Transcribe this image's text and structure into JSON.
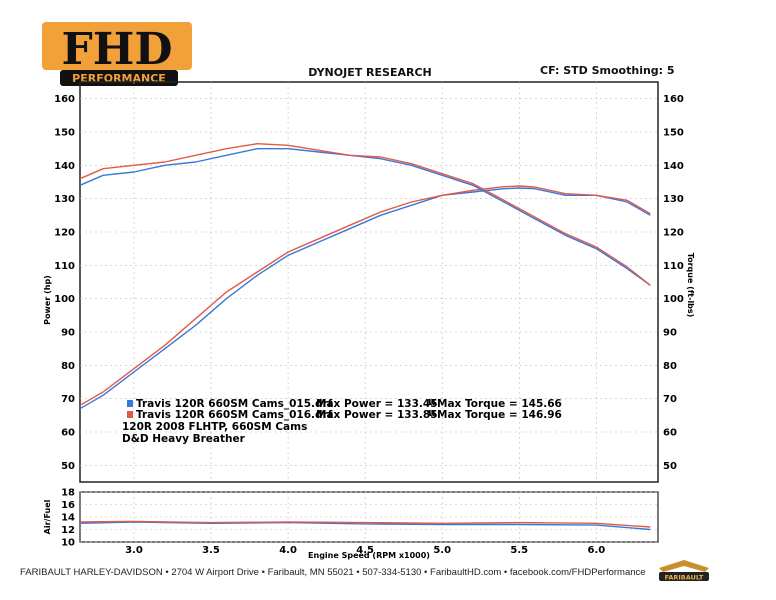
{
  "header": {
    "logo_text": "FHD",
    "logo_sub": "PERFORMANCE",
    "title": "DYNOJET RESEARCH",
    "right": "CF: STD  Smoothing: 5"
  },
  "footer": {
    "text": "FARIBAULT HARLEY-DAVIDSON • 2704 W Airport Drive • Faribault, MN 55021 • 507-334-5130 • FaribaultHD.com • facebook.com/FHDPerformance",
    "logo_text": "FARIBAULT"
  },
  "colors": {
    "series_blue": "#3a78d8",
    "series_red": "#e05a4a",
    "grid": "#bdbdbd"
  },
  "legend": {
    "run1": {
      "file": "Travis 120R 660SM Cams_015.drf",
      "max_power": "Max Power = 133.45",
      "max_torque": "Max Torque = 145.66",
      "marker": "u"
    },
    "run2": {
      "file": "Travis 120R 660SM Cams_016.drf",
      "max_power": "Max Power = 133.85",
      "max_torque": "Max Torque = 146.96",
      "marker": "u"
    },
    "note1": "120R 2008 FLHTP, 660SM Cams",
    "note2": "D&D Heavy Breather"
  },
  "chart_data": [
    {
      "type": "line",
      "title": "DYNOJET RESEARCH",
      "xlabel": "Engine Speed (RPM x1000)",
      "ylabel": "Power (hp)",
      "y2label": "Torque (ft-lbs)",
      "xlim": [
        2.65,
        6.4
      ],
      "ylim": [
        45,
        165
      ],
      "xticks": [
        "3.0",
        "3.5",
        "4.0",
        "4.5",
        "5.0",
        "5.5",
        "6.0"
      ],
      "yticks": [
        "50",
        "60",
        "70",
        "80",
        "90",
        "100",
        "110",
        "120",
        "130",
        "140",
        "150",
        "160"
      ],
      "grid": true,
      "series": [
        {
          "name": "Travis 120R 660SM Cams_015.drf",
          "quantity": "power",
          "color": "#3a78d8",
          "x": [
            2.65,
            2.8,
            3.0,
            3.2,
            3.4,
            3.6,
            3.8,
            4.0,
            4.2,
            4.4,
            4.6,
            4.8,
            5.0,
            5.2,
            5.4,
            5.5,
            5.6,
            5.8,
            6.0,
            6.2,
            6.35
          ],
          "y": [
            67,
            71,
            78,
            85,
            92,
            100,
            107,
            113,
            117,
            121,
            125,
            128,
            131,
            132,
            133,
            133.2,
            133,
            131,
            131,
            129,
            125
          ]
        },
        {
          "name": "Travis 120R 660SM Cams_016.drf",
          "quantity": "power",
          "color": "#e05a4a",
          "x": [
            2.65,
            2.8,
            3.0,
            3.2,
            3.4,
            3.6,
            3.8,
            4.0,
            4.2,
            4.4,
            4.6,
            4.8,
            5.0,
            5.2,
            5.4,
            5.5,
            5.6,
            5.8,
            6.0,
            6.2,
            6.35
          ],
          "y": [
            68,
            72,
            79,
            86,
            94,
            102,
            108,
            114,
            118,
            122,
            126,
            129,
            131,
            132.5,
            133.6,
            133.8,
            133.5,
            131.5,
            131,
            129.5,
            125.5
          ]
        },
        {
          "name": "Travis 120R 660SM Cams_015.drf",
          "quantity": "torque",
          "color": "#3a78d8",
          "x": [
            2.65,
            2.8,
            3.0,
            3.2,
            3.4,
            3.6,
            3.8,
            4.0,
            4.2,
            4.4,
            4.6,
            4.8,
            5.0,
            5.2,
            5.4,
            5.6,
            5.8,
            6.0,
            6.2,
            6.35
          ],
          "y": [
            134,
            137,
            138,
            140,
            141,
            143,
            145,
            145,
            144,
            143,
            142,
            140,
            137,
            134,
            129,
            124,
            119,
            115,
            109,
            104
          ]
        },
        {
          "name": "Travis 120R 660SM Cams_016.drf",
          "quantity": "torque",
          "color": "#e05a4a",
          "x": [
            2.65,
            2.8,
            3.0,
            3.2,
            3.4,
            3.6,
            3.8,
            4.0,
            4.2,
            4.4,
            4.6,
            4.8,
            5.0,
            5.2,
            5.4,
            5.6,
            5.8,
            6.0,
            6.2,
            6.35
          ],
          "y": [
            136,
            139,
            140,
            141,
            143,
            145,
            146.5,
            146,
            144.5,
            143,
            142.5,
            140.5,
            137.5,
            134.5,
            129.5,
            124.5,
            119.5,
            115.5,
            109.5,
            104
          ]
        }
      ]
    },
    {
      "type": "line",
      "ylabel": "Air/Fuel",
      "xlabel": "Engine Speed (RPM x1000)",
      "xlim": [
        2.65,
        6.4
      ],
      "ylim": [
        10,
        18
      ],
      "yticks": [
        "10",
        "12",
        "14",
        "16",
        "18"
      ],
      "grid": true,
      "series": [
        {
          "name": "Travis 120R 660SM Cams_015.drf",
          "color": "#3a78d8",
          "x": [
            2.65,
            3.0,
            3.5,
            4.0,
            4.5,
            5.0,
            5.5,
            6.0,
            6.35
          ],
          "y": [
            13.0,
            13.2,
            13.0,
            13.1,
            12.9,
            12.8,
            12.8,
            12.7,
            12.0
          ]
        },
        {
          "name": "Travis 120R 660SM Cams_016.drf",
          "color": "#e05a4a",
          "x": [
            2.65,
            3.0,
            3.5,
            4.0,
            4.5,
            5.0,
            5.5,
            6.0,
            6.35
          ],
          "y": [
            13.2,
            13.3,
            13.1,
            13.2,
            13.1,
            13.0,
            13.1,
            13.0,
            12.4
          ]
        }
      ]
    }
  ]
}
